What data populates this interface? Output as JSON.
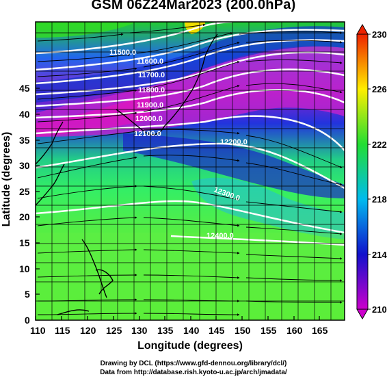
{
  "title": "GSM 06Z24Mar2023 (200.0hPa)",
  "x_axis": {
    "label": "Longitude (degrees)",
    "ticks": [
      "110",
      "115",
      "120",
      "125",
      "130",
      "135",
      "140",
      "145",
      "150",
      "155",
      "160",
      "165"
    ]
  },
  "y_axis": {
    "label": "Latitude (degrees)",
    "ticks": [
      "0",
      "5",
      "10",
      "15",
      "20",
      "25",
      "30",
      "35",
      "40",
      "45"
    ]
  },
  "map": {
    "lon_range": [
      110,
      170
    ],
    "lat_range": [
      0,
      50
    ],
    "field": "temperature shading with streamlines",
    "contour_labels": [
      "11500.0",
      "11600.0",
      "11700.0",
      "11800.0",
      "11900.0",
      "12000.0",
      "12100.0",
      "12200.0",
      "12300.0",
      "12400.0"
    ]
  },
  "colorbar": {
    "ticks": [
      "210",
      "214",
      "218",
      "222",
      "226",
      "230"
    ],
    "range": [
      210,
      230
    ],
    "colors": [
      "#cc00cc",
      "#1111cc",
      "#00bbee",
      "#22dd33",
      "#ffee00",
      "#ee2200"
    ]
  },
  "credits": {
    "line1": "Drawing by DCL (https://www.gfd-dennou.org/library/dcl/)",
    "line2": "Data from http://database.rish.kyoto-u.ac.jp/arch/jmadata/"
  }
}
